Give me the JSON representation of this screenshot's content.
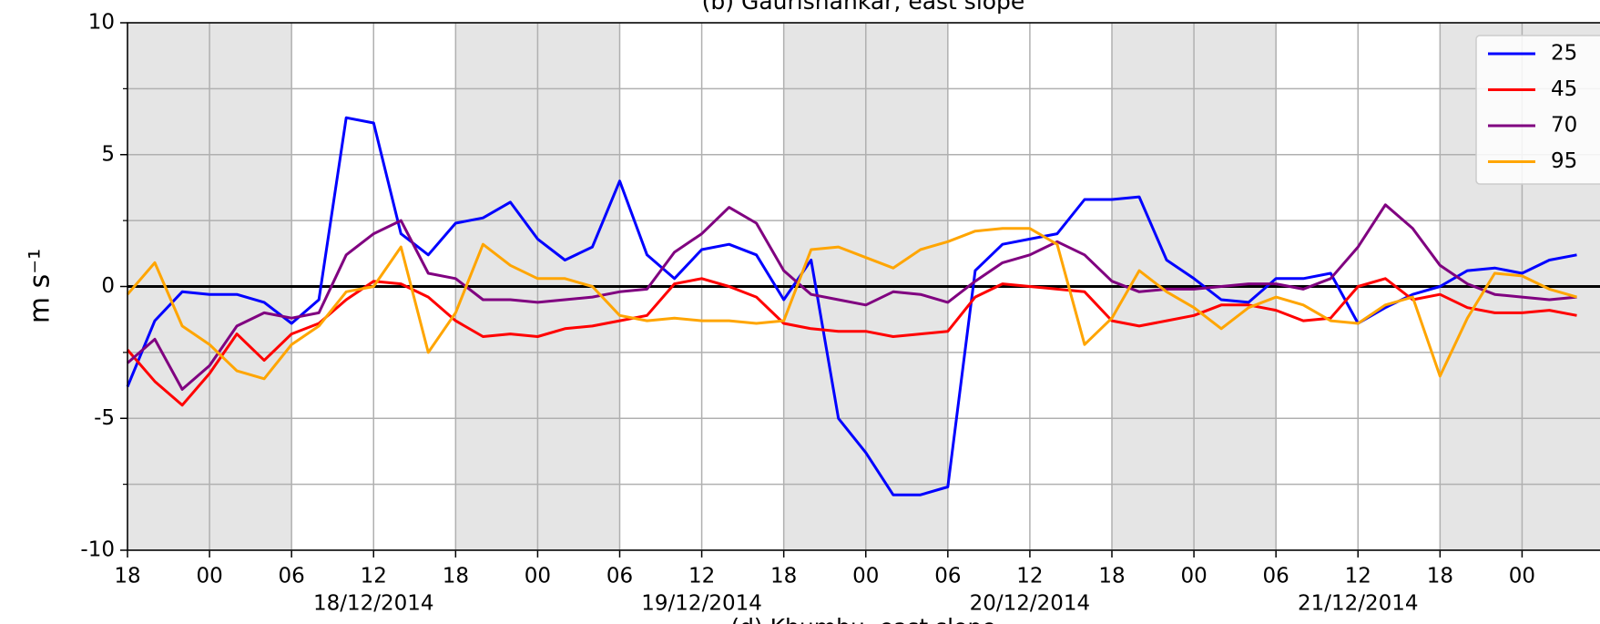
{
  "chart_data": {
    "type": "line",
    "title": "(b) Gaurishankar, east slope",
    "next_title": "(d) Khumbu, east slope",
    "ylabel": "m s⁻¹",
    "x": [
      0,
      2,
      4,
      6,
      8,
      10,
      12,
      14,
      16,
      18,
      20,
      22,
      24,
      26,
      28,
      30,
      32,
      34,
      36,
      38,
      40,
      42,
      44,
      46,
      48,
      50,
      52,
      54,
      56,
      58,
      60,
      62,
      64,
      66,
      68,
      70,
      72,
      74,
      76,
      78,
      80,
      82,
      84,
      86,
      88,
      90,
      92,
      94,
      96,
      98,
      100,
      102,
      104,
      106
    ],
    "series": [
      {
        "name": "25",
        "color": "#0000ff",
        "values": [
          -3.8,
          -1.3,
          -0.2,
          -0.3,
          -0.3,
          -0.6,
          -1.4,
          -0.5,
          6.4,
          6.2,
          2.0,
          1.2,
          2.4,
          2.6,
          3.2,
          1.8,
          1.0,
          1.5,
          4.0,
          1.2,
          0.3,
          1.4,
          1.6,
          1.2,
          -0.5,
          1.0,
          -5.0,
          -6.3,
          -7.9,
          -7.9,
          -7.6,
          0.6,
          1.6,
          1.8,
          2.0,
          3.3,
          3.3,
          3.4,
          1.0,
          0.3,
          -0.5,
          -0.6,
          0.3,
          0.3,
          0.5,
          -1.4,
          -0.8,
          -0.3,
          0.0,
          0.6,
          0.7,
          0.5,
          1.0,
          1.2
        ]
      },
      {
        "name": "45",
        "color": "#ff0000",
        "values": [
          -2.4,
          -3.6,
          -4.5,
          -3.3,
          -1.8,
          -2.8,
          -1.8,
          -1.4,
          -0.5,
          0.2,
          0.1,
          -0.4,
          -1.3,
          -1.9,
          -1.8,
          -1.9,
          -1.6,
          -1.5,
          -1.3,
          -1.1,
          0.1,
          0.3,
          0.0,
          -0.4,
          -1.4,
          -1.6,
          -1.7,
          -1.7,
          -1.9,
          -1.8,
          -1.7,
          -0.4,
          0.1,
          0.0,
          -0.1,
          -0.2,
          -1.3,
          -1.5,
          -1.3,
          -1.1,
          -0.7,
          -0.7,
          -0.9,
          -1.3,
          -1.2,
          0.0,
          0.3,
          -0.5,
          -0.3,
          -0.8,
          -1.0,
          -1.0,
          -0.9,
          -1.1
        ]
      },
      {
        "name": "70",
        "color": "#800080",
        "values": [
          -2.9,
          -2.0,
          -3.9,
          -3.0,
          -1.5,
          -1.0,
          -1.2,
          -1.0,
          1.2,
          2.0,
          2.5,
          0.5,
          0.3,
          -0.5,
          -0.5,
          -0.6,
          -0.5,
          -0.4,
          -0.2,
          -0.1,
          1.3,
          2.0,
          3.0,
          2.4,
          0.6,
          -0.3,
          -0.5,
          -0.7,
          -0.2,
          -0.3,
          -0.6,
          0.2,
          0.9,
          1.2,
          1.7,
          1.2,
          0.2,
          -0.2,
          -0.1,
          -0.1,
          0.0,
          0.1,
          0.1,
          -0.1,
          0.3,
          1.5,
          3.1,
          2.2,
          0.8,
          0.1,
          -0.3,
          -0.4,
          -0.5,
          -0.4
        ]
      },
      {
        "name": "95",
        "color": "#ffa500",
        "values": [
          -0.3,
          0.9,
          -1.5,
          -2.2,
          -3.2,
          -3.5,
          -2.2,
          -1.5,
          -0.2,
          0.0,
          1.5,
          -2.5,
          -1.0,
          1.6,
          0.8,
          0.3,
          0.3,
          0.0,
          -1.1,
          -1.3,
          -1.2,
          -1.3,
          -1.3,
          -1.4,
          -1.3,
          1.4,
          1.5,
          1.1,
          0.7,
          1.4,
          1.7,
          2.1,
          2.2,
          2.2,
          1.6,
          -2.2,
          -1.2,
          0.6,
          -0.2,
          -0.8,
          -1.6,
          -0.8,
          -0.4,
          -0.7,
          -1.3,
          -1.4,
          -0.7,
          -0.4,
          -3.4,
          -1.2,
          0.5,
          0.4,
          -0.1,
          -0.4
        ]
      }
    ],
    "xlim": [
      0,
      107.7
    ],
    "xticks": [
      {
        "value": 0,
        "label": "18"
      },
      {
        "value": 6,
        "label": "00"
      },
      {
        "value": 12,
        "label": "06"
      },
      {
        "value": 18,
        "label": "12"
      },
      {
        "value": 24,
        "label": "18"
      },
      {
        "value": 30,
        "label": "00"
      },
      {
        "value": 36,
        "label": "06"
      },
      {
        "value": 42,
        "label": "12"
      },
      {
        "value": 48,
        "label": "18"
      },
      {
        "value": 54,
        "label": "00"
      },
      {
        "value": 60,
        "label": "06"
      },
      {
        "value": 66,
        "label": "12"
      },
      {
        "value": 72,
        "label": "18"
      },
      {
        "value": 78,
        "label": "00"
      },
      {
        "value": 84,
        "label": "06"
      },
      {
        "value": 90,
        "label": "12"
      },
      {
        "value": 96,
        "label": "18"
      },
      {
        "value": 102,
        "label": "00"
      }
    ],
    "date_labels": [
      {
        "value": 18,
        "label": "18/12/2014"
      },
      {
        "value": 42,
        "label": "19/12/2014"
      },
      {
        "value": 66,
        "label": "20/12/2014"
      },
      {
        "value": 90,
        "label": "21/12/2014"
      }
    ],
    "ylim": [
      -10,
      10
    ],
    "yticks": [
      10,
      5,
      0,
      -5,
      -10
    ],
    "minor_yticks": [
      7.5,
      2.5,
      -2.5,
      -7.5
    ],
    "shaded_spans": [
      [
        0,
        12
      ],
      [
        24,
        36
      ],
      [
        48,
        60
      ],
      [
        72,
        84
      ],
      [
        96,
        107.7
      ]
    ],
    "shade_color": "#e5e5e5",
    "grid": true,
    "zero_line": true,
    "legend": "upper right"
  }
}
